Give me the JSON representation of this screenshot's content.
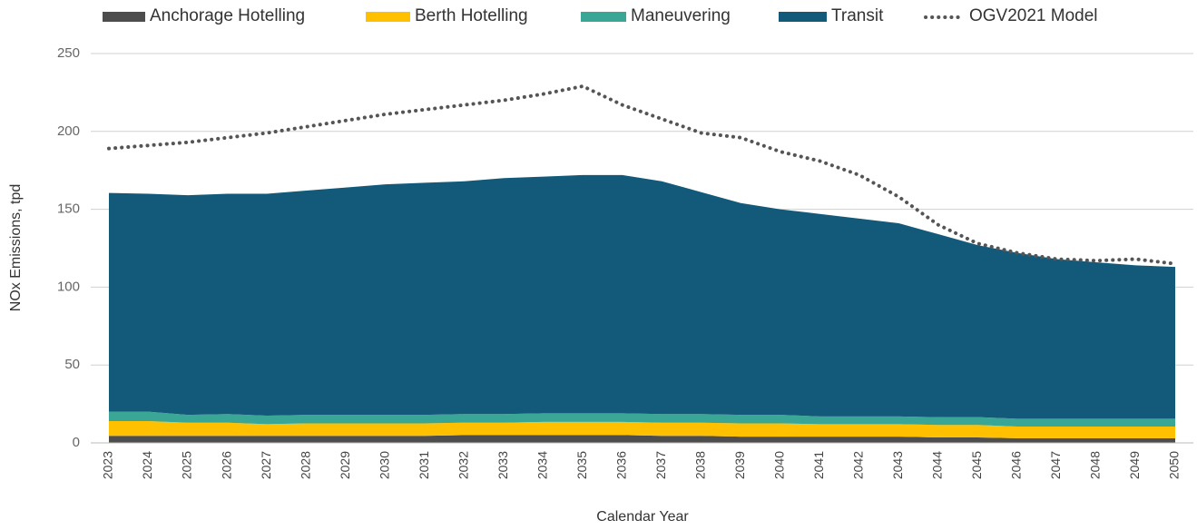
{
  "chart_data": {
    "type": "stacked_area",
    "ylabel": "NOx Emissions, tpd",
    "xlabel": "Calendar Year",
    "categories": [
      "2023",
      "2024",
      "2025",
      "2026",
      "2027",
      "2028",
      "2029",
      "2030",
      "2031",
      "2032",
      "2033",
      "2034",
      "2035",
      "2036",
      "2037",
      "2038",
      "2039",
      "2040",
      "2041",
      "2042",
      "2043",
      "2044",
      "2045",
      "2046",
      "2047",
      "2048",
      "2049",
      "2050"
    ],
    "series": [
      {
        "name": "Anchorage Hotelling",
        "color": "#4d4d4d",
        "values": [
          4.5,
          4.5,
          4.5,
          4.5,
          4.5,
          4.5,
          4.5,
          4.5,
          4.5,
          5,
          5,
          5,
          5,
          5,
          4.5,
          4.5,
          4,
          4,
          4,
          4,
          4,
          3.5,
          3.5,
          3,
          3,
          3,
          3,
          3
        ]
      },
      {
        "name": "Berth Hotelling",
        "color": "#ffc000",
        "values": [
          9.5,
          9.5,
          8.5,
          8.5,
          7.5,
          8,
          8,
          8,
          8,
          8,
          8,
          8.5,
          8.5,
          8.5,
          8.5,
          8.5,
          8.5,
          8.5,
          8,
          8,
          8,
          8,
          8,
          7.5,
          7.5,
          7.5,
          7.5,
          7.5
        ]
      },
      {
        "name": "Maneuvering",
        "color": "#3aa796",
        "values": [
          6,
          6,
          5,
          5.5,
          5.5,
          5.5,
          5.5,
          5.5,
          5.5,
          5.5,
          5.5,
          5.5,
          5.5,
          5.5,
          5.5,
          5.5,
          5.5,
          5.5,
          5,
          5,
          5,
          5,
          5,
          5,
          5,
          5,
          5,
          5
        ]
      },
      {
        "name": "Transit",
        "color": "#135a7a",
        "values": [
          140.5,
          140,
          141,
          141.5,
          142.5,
          144,
          146,
          148,
          149,
          149.5,
          151.5,
          152,
          153,
          153,
          149.5,
          142.5,
          136,
          132,
          130,
          127,
          124,
          117.5,
          110.5,
          106.5,
          102.5,
          100.5,
          98.5,
          97.5
        ]
      }
    ],
    "line": {
      "name": "OGV2021 Model",
      "color": "#555555",
      "style": "dotted",
      "values": [
        189,
        191,
        193,
        196,
        199,
        203,
        207,
        211,
        214,
        217,
        220,
        224,
        229,
        217,
        208,
        199,
        196,
        187,
        181,
        172,
        158,
        140,
        128,
        122,
        118,
        117,
        118,
        115
      ]
    },
    "ylim": [
      0,
      250
    ],
    "yticks": [
      0,
      50,
      100,
      150,
      200,
      250
    ],
    "grid": true,
    "legend": "top"
  }
}
